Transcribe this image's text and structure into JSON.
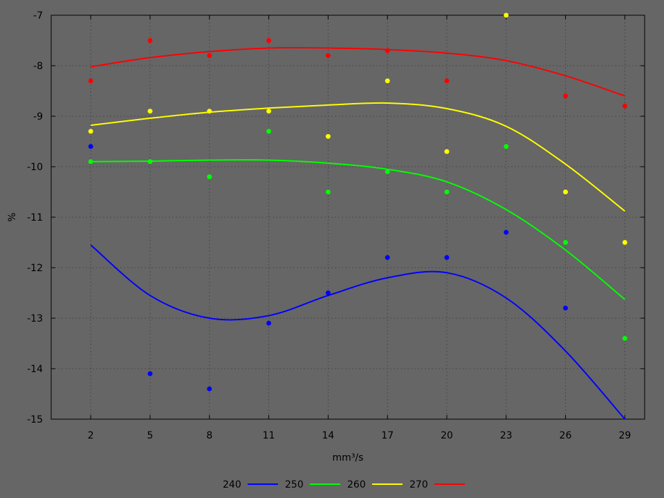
{
  "chart_data": {
    "type": "scatter",
    "xlabel": "mm³/s",
    "ylabel": "%",
    "x": [
      2,
      5,
      8,
      11,
      14,
      17,
      20,
      23,
      26,
      29
    ],
    "xlim": [
      0,
      30
    ],
    "ylim": [
      -15,
      -7
    ],
    "x_ticks": [
      2,
      5,
      8,
      11,
      14,
      17,
      20,
      23,
      26,
      29
    ],
    "y_ticks": [
      -7,
      -8,
      -9,
      -10,
      -11,
      -12,
      -13,
      -14,
      -15
    ],
    "grid": true,
    "legend_position": "bottom-center",
    "series": [
      {
        "name": "240",
        "color": "#0000ff",
        "points": [
          -9.6,
          -14.1,
          -14.4,
          -13.1,
          -12.5,
          -11.8,
          -11.8,
          -11.3,
          -12.8,
          null
        ],
        "fit": [
          -11.55,
          -12.55,
          -13.0,
          -12.95,
          -12.55,
          -12.2,
          -12.1,
          -12.6,
          -13.65,
          -15.0
        ]
      },
      {
        "name": "250",
        "color": "#00ff00",
        "points": [
          -9.9,
          -9.9,
          -10.2,
          -9.3,
          -10.5,
          -10.1,
          -10.5,
          -9.6,
          -11.5,
          -13.4
        ],
        "fit": [
          -9.9,
          -9.89,
          -9.87,
          -9.87,
          -9.93,
          -10.05,
          -10.3,
          -10.85,
          -11.65,
          -12.63
        ]
      },
      {
        "name": "260",
        "color": "#ffff00",
        "points": [
          -9.3,
          -8.9,
          -8.9,
          -8.9,
          -9.4,
          -8.3,
          -9.7,
          -7.0,
          -10.5,
          -11.5
        ],
        "fit": [
          -9.18,
          -9.04,
          -8.92,
          -8.84,
          -8.78,
          -8.74,
          -8.85,
          -9.2,
          -9.95,
          -10.88
        ]
      },
      {
        "name": "270",
        "color": "#ff0000",
        "points": [
          -8.3,
          -7.5,
          -7.8,
          -7.5,
          -7.8,
          -7.7,
          -8.3,
          null,
          -8.6,
          -8.8
        ],
        "fit": [
          -8.02,
          -7.84,
          -7.72,
          -7.65,
          -7.65,
          -7.68,
          -7.75,
          -7.9,
          -8.2,
          -8.6
        ]
      }
    ]
  }
}
